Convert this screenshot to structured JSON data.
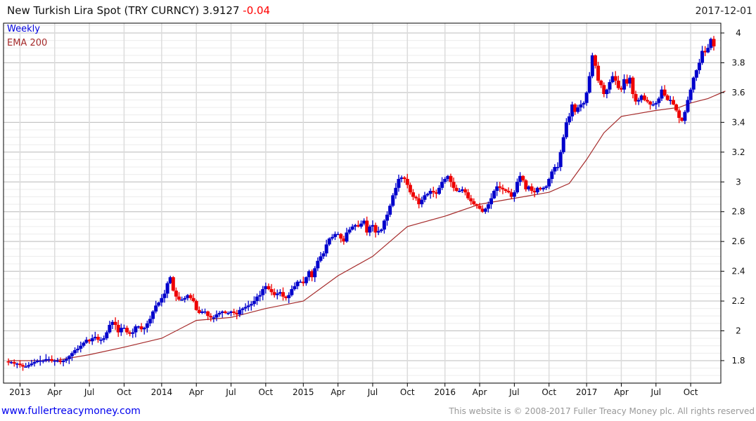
{
  "header": {
    "title": "New Turkish Lira Spot (TRY CURNCY) 3.9127",
    "change": "-0.04",
    "date": "2017-12-01"
  },
  "footer": {
    "link": "www.fullertreacymoney.com",
    "copyright": "This website is © 2008-2017 Fuller Treacy Money plc. All rights reserved"
  },
  "colors": {
    "up": "#0000cc",
    "down": "#ee0000",
    "ema": "#a52a2a",
    "change": "#ff0000"
  },
  "chart_data": {
    "type": "candlestick",
    "title": "New Turkish Lira Spot (TRY CURNCY)",
    "interval_label": "Weekly",
    "legend": [
      "Weekly",
      "EMA 200"
    ],
    "legend_position": "top-left",
    "ylim": [
      1.649,
      4.066
    ],
    "yticks": [
      1.8,
      2,
      2.2,
      2.4,
      2.6,
      2.8,
      3,
      3.2,
      3.4,
      3.6,
      3.8,
      4
    ],
    "ytick_labels": [
      "1.8",
      "2",
      "2.2",
      "2.4",
      "2.6",
      "2.8",
      "3",
      "3.2",
      "3.4",
      "3.6",
      "3.8",
      "4"
    ],
    "xticks": [
      {
        "i": 4,
        "label": "2013"
      },
      {
        "i": 16,
        "label": "Apr"
      },
      {
        "i": 28,
        "label": "Jul"
      },
      {
        "i": 40,
        "label": "Oct"
      },
      {
        "i": 53,
        "label": "2014"
      },
      {
        "i": 65,
        "label": "Apr"
      },
      {
        "i": 77,
        "label": "Jul"
      },
      {
        "i": 89,
        "label": "Oct"
      },
      {
        "i": 102,
        "label": "2015"
      },
      {
        "i": 114,
        "label": "Apr"
      },
      {
        "i": 126,
        "label": "Jul"
      },
      {
        "i": 138,
        "label": "Oct"
      },
      {
        "i": 151,
        "label": "2016"
      },
      {
        "i": 163,
        "label": "Apr"
      },
      {
        "i": 175,
        "label": "Jul"
      },
      {
        "i": 187,
        "label": "Oct"
      },
      {
        "i": 200,
        "label": "2017"
      },
      {
        "i": 212,
        "label": "Apr"
      },
      {
        "i": 224,
        "label": "Jul"
      },
      {
        "i": 236,
        "label": "Oct"
      }
    ],
    "weekly_close": [
      1.79,
      1.79,
      1.78,
      1.78,
      1.77,
      1.76,
      1.76,
      1.77,
      1.78,
      1.79,
      1.8,
      1.8,
      1.8,
      1.81,
      1.81,
      1.8,
      1.8,
      1.8,
      1.79,
      1.8,
      1.81,
      1.83,
      1.85,
      1.87,
      1.88,
      1.9,
      1.92,
      1.94,
      1.93,
      1.95,
      1.96,
      1.94,
      1.94,
      1.95,
      1.99,
      2.04,
      2.06,
      2.04,
      1.99,
      2.02,
      2.02,
      1.99,
      1.98,
      1.99,
      2.03,
      2.03,
      2.01,
      2.02,
      2.05,
      2.08,
      2.13,
      2.17,
      2.19,
      2.22,
      2.25,
      2.32,
      2.36,
      2.27,
      2.23,
      2.21,
      2.21,
      2.22,
      2.24,
      2.22,
      2.2,
      2.14,
      2.12,
      2.13,
      2.13,
      2.1,
      2.09,
      2.09,
      2.11,
      2.12,
      2.13,
      2.12,
      2.12,
      2.13,
      2.12,
      2.11,
      2.14,
      2.15,
      2.16,
      2.17,
      2.18,
      2.2,
      2.23,
      2.24,
      2.28,
      2.3,
      2.28,
      2.26,
      2.24,
      2.25,
      2.26,
      2.23,
      2.22,
      2.24,
      2.28,
      2.3,
      2.33,
      2.33,
      2.32,
      2.36,
      2.4,
      2.36,
      2.42,
      2.47,
      2.5,
      2.52,
      2.58,
      2.62,
      2.63,
      2.65,
      2.65,
      2.62,
      2.6,
      2.66,
      2.68,
      2.7,
      2.71,
      2.7,
      2.72,
      2.74,
      2.66,
      2.7,
      2.71,
      2.66,
      2.67,
      2.68,
      2.74,
      2.78,
      2.84,
      2.91,
      2.96,
      3.02,
      3.03,
      3.02,
      2.98,
      2.93,
      2.9,
      2.89,
      2.85,
      2.88,
      2.91,
      2.92,
      2.94,
      2.93,
      2.92,
      2.96,
      3.0,
      3.02,
      3.04,
      3.0,
      2.96,
      2.94,
      2.94,
      2.95,
      2.93,
      2.89,
      2.87,
      2.85,
      2.84,
      2.82,
      2.8,
      2.82,
      2.85,
      2.89,
      2.94,
      2.97,
      2.96,
      2.95,
      2.94,
      2.93,
      2.9,
      2.93,
      3.0,
      3.04,
      3.01,
      2.95,
      2.97,
      2.94,
      2.93,
      2.96,
      2.95,
      2.96,
      2.97,
      3.02,
      3.07,
      3.1,
      3.1,
      3.2,
      3.3,
      3.4,
      3.44,
      3.52,
      3.47,
      3.5,
      3.52,
      3.53,
      3.6,
      3.71,
      3.85,
      3.78,
      3.68,
      3.65,
      3.59,
      3.62,
      3.67,
      3.71,
      3.68,
      3.63,
      3.62,
      3.69,
      3.66,
      3.7,
      3.59,
      3.54,
      3.55,
      3.58,
      3.55,
      3.54,
      3.52,
      3.52,
      3.53,
      3.56,
      3.62,
      3.58,
      3.55,
      3.55,
      3.52,
      3.48,
      3.43,
      3.41,
      3.47,
      3.55,
      3.62,
      3.7,
      3.75,
      3.8,
      3.88,
      3.87,
      3.9,
      3.96,
      3.91
    ],
    "ema200": [
      [
        0,
        1.8
      ],
      [
        4,
        1.8
      ],
      [
        16,
        1.8
      ],
      [
        28,
        1.84
      ],
      [
        40,
        1.89
      ],
      [
        53,
        1.95
      ],
      [
        65,
        2.07
      ],
      [
        77,
        2.09
      ],
      [
        89,
        2.15
      ],
      [
        102,
        2.2
      ],
      [
        114,
        2.37
      ],
      [
        126,
        2.5
      ],
      [
        138,
        2.7
      ],
      [
        151,
        2.77
      ],
      [
        163,
        2.85
      ],
      [
        175,
        2.89
      ],
      [
        187,
        2.93
      ],
      [
        194,
        2.99
      ],
      [
        200,
        3.15
      ],
      [
        206,
        3.33
      ],
      [
        212,
        3.44
      ],
      [
        224,
        3.48
      ],
      [
        232,
        3.5
      ],
      [
        236,
        3.53
      ],
      [
        242,
        3.56
      ],
      [
        248,
        3.61
      ]
    ]
  }
}
